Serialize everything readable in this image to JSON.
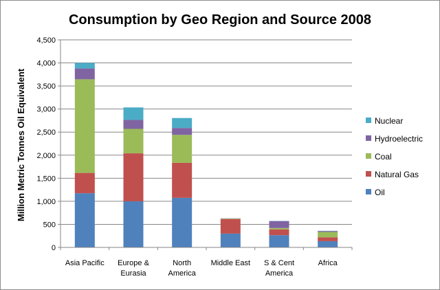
{
  "chart_data": {
    "type": "bar",
    "stacked": true,
    "title": "Consumption by Geo Region and Source 2008",
    "xlabel": "",
    "ylabel": "Million Metric Tonnes Oil Equivalent",
    "ylim": [
      0,
      4500
    ],
    "y_ticks": [
      "0",
      "500",
      "1,000",
      "1,500",
      "2,000",
      "2,500",
      "3,000",
      "3,500",
      "4,000",
      "4,500"
    ],
    "y_tick_values": [
      0,
      500,
      1000,
      1500,
      2000,
      2500,
      3000,
      3500,
      4000,
      4500
    ],
    "grid": true,
    "legend_position": "right",
    "categories": [
      [
        "Asia Pacific"
      ],
      [
        "Europe &",
        "Eurasia"
      ],
      [
        "North",
        "America"
      ],
      [
        "Middle East"
      ],
      [
        "S & Cent",
        "America"
      ],
      [
        "Africa"
      ]
    ],
    "series": [
      {
        "name": "Oil",
        "color": "#4f81bd",
        "values": [
          1175,
          1000,
          1075,
          300,
          265,
          135
        ]
      },
      {
        "name": "Natural Gas",
        "color": "#c0504d",
        "values": [
          440,
          1040,
          760,
          315,
          125,
          85
        ]
      },
      {
        "name": "Coal",
        "color": "#9bbb59",
        "values": [
          2030,
          530,
          605,
          10,
          30,
          115
        ]
      },
      {
        "name": "Hydroelectric",
        "color": "#8064a2",
        "values": [
          235,
          195,
          150,
          5,
          150,
          20
        ]
      },
      {
        "name": "Nuclear",
        "color": "#4bacc6",
        "values": [
          120,
          270,
          215,
          0,
          5,
          5
        ]
      }
    ],
    "legend_order": [
      "Nuclear",
      "Hydroelectric",
      "Coal",
      "Natural Gas",
      "Oil"
    ]
  }
}
